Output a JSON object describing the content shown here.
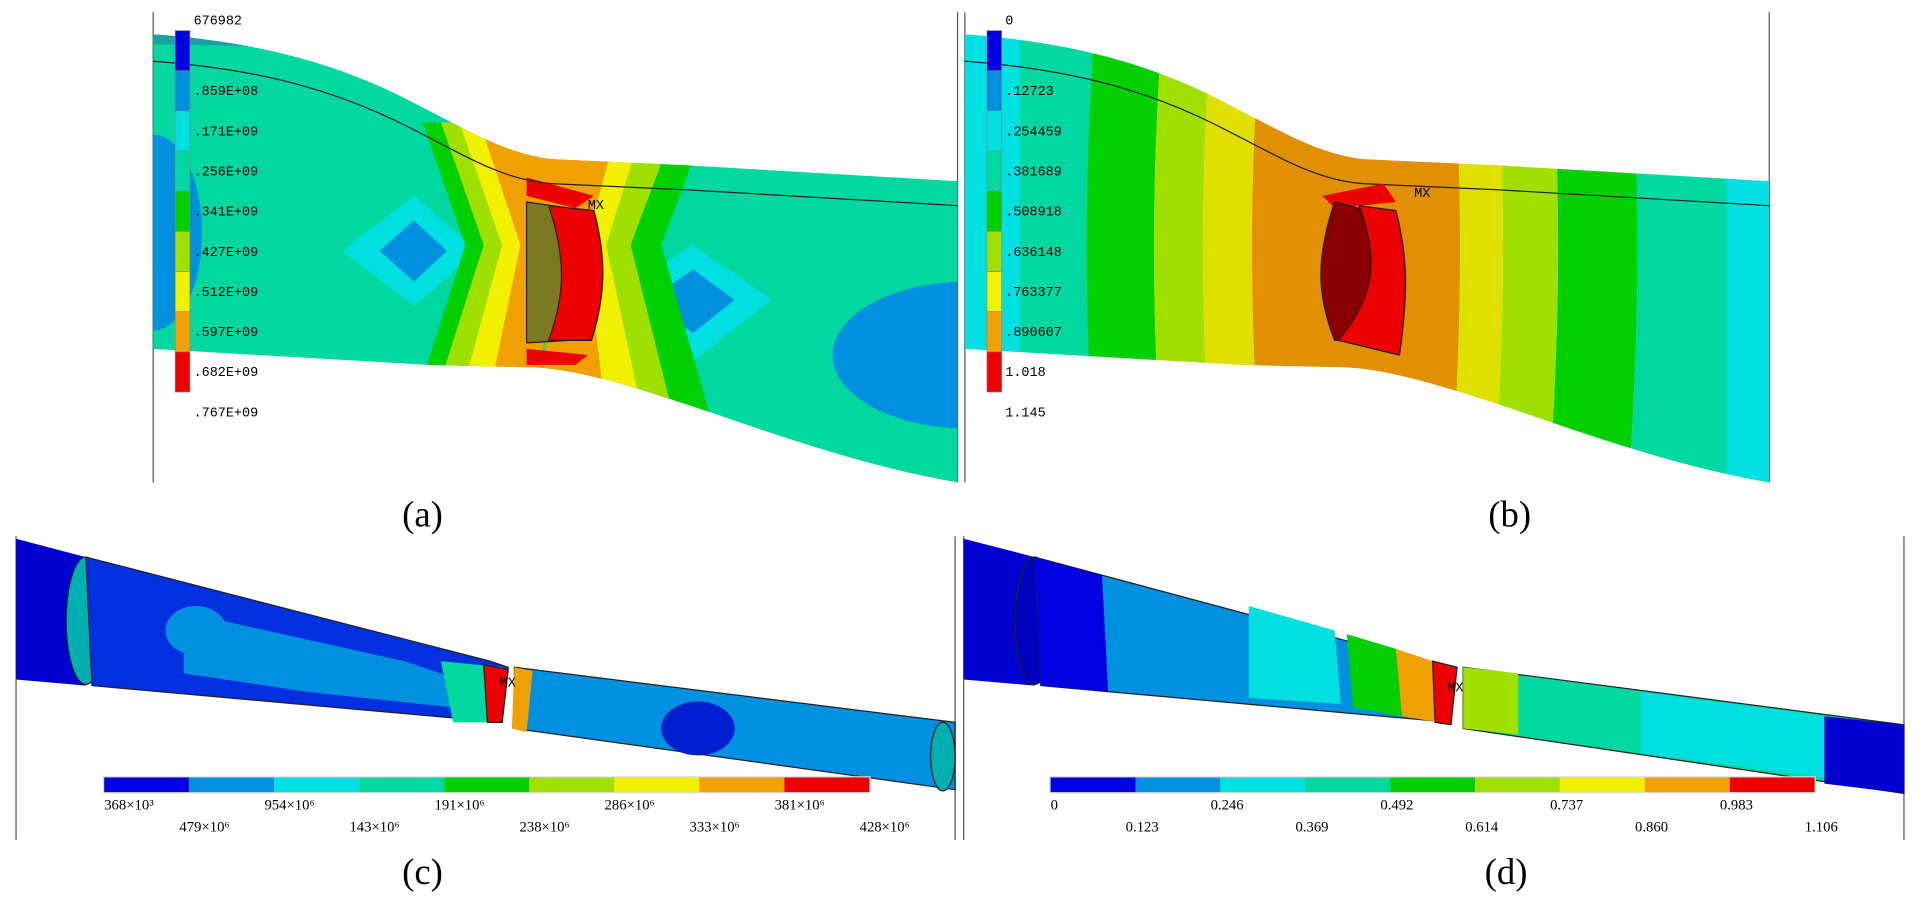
{
  "panels": [
    {
      "caption": "(a)",
      "marker": "MX",
      "legend": [
        "676982",
        ".859E+08",
        ".171E+09",
        ".256E+09",
        ".341E+09",
        ".427E+09",
        ".512E+09",
        ".597E+09",
        ".682E+09",
        ".767E+09"
      ]
    },
    {
      "caption": "(b)",
      "marker": "MX",
      "legend": [
        "0",
        ".12723",
        ".254459",
        ".381689",
        ".508918",
        ".636148",
        ".763377",
        ".890607",
        "1.018",
        "1.145"
      ]
    },
    {
      "caption": "(c)",
      "marker": "MX",
      "legend": [
        "368×10³",
        "479×10⁶",
        "954×10⁶",
        "143×10⁶",
        "191×10⁶",
        "238×10⁶",
        "286×10⁶",
        "333×10⁶",
        "381×10⁶",
        "428×10⁶"
      ]
    },
    {
      "caption": "(d)",
      "marker": "MX",
      "legend": [
        "0",
        "0.123",
        "0.246",
        "0.369",
        "0.492",
        "0.614",
        "0.737",
        "0.860",
        "0.983",
        "1.106"
      ]
    }
  ]
}
